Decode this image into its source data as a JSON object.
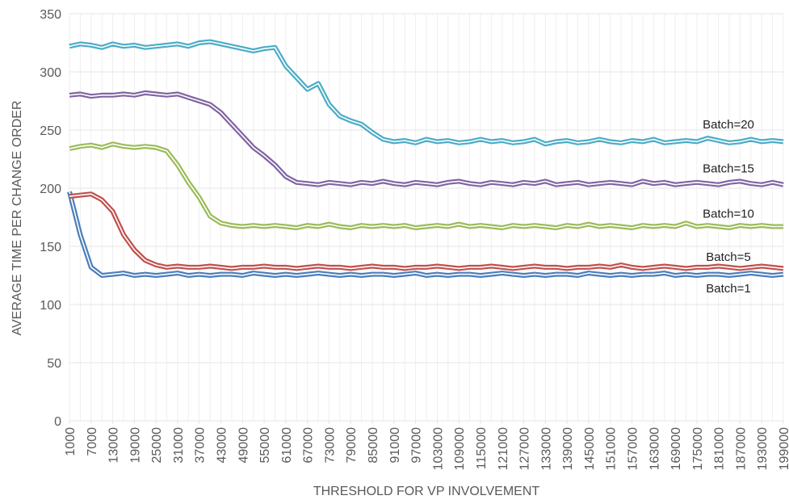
{
  "chart_data": {
    "type": "line",
    "x_label": "THRESHOLD FOR VP INVOLVEMENT",
    "y_label": "AVERAGE TIME PER CHANGE ORDER",
    "x": [
      1000,
      4000,
      7000,
      10000,
      13000,
      16000,
      19000,
      22000,
      25000,
      28000,
      31000,
      34000,
      37000,
      40000,
      43000,
      46000,
      49000,
      52000,
      55000,
      58000,
      61000,
      64000,
      67000,
      70000,
      73000,
      76000,
      79000,
      82000,
      85000,
      88000,
      91000,
      94000,
      97000,
      100000,
      103000,
      106000,
      109000,
      112000,
      115000,
      118000,
      121000,
      124000,
      127000,
      130000,
      133000,
      136000,
      139000,
      142000,
      145000,
      148000,
      151000,
      154000,
      157000,
      160000,
      163000,
      166000,
      169000,
      172000,
      175000,
      178000,
      181000,
      184000,
      187000,
      190000,
      193000,
      196000,
      199000
    ],
    "xlim": [
      1000,
      199000
    ],
    "xticks": [
      1000,
      7000,
      13000,
      19000,
      25000,
      31000,
      37000,
      43000,
      49000,
      55000,
      61000,
      67000,
      73000,
      79000,
      85000,
      91000,
      97000,
      103000,
      109000,
      115000,
      121000,
      127000,
      133000,
      139000,
      145000,
      151000,
      157000,
      163000,
      169000,
      175000,
      181000,
      187000,
      193000,
      199000
    ],
    "ylim": [
      0,
      350
    ],
    "yticks": [
      0,
      50,
      100,
      150,
      200,
      250,
      300,
      350
    ],
    "grid": true,
    "series": [
      {
        "name": "Batch=1",
        "color": "#4a7ebb",
        "values": [
          197,
          160,
          132,
          125,
          126,
          127,
          125,
          126,
          125,
          126,
          127,
          125,
          126,
          125,
          126,
          126,
          125,
          127,
          126,
          125,
          126,
          125,
          126,
          127,
          126,
          125,
          126,
          125,
          126,
          126,
          125,
          126,
          127,
          125,
          126,
          125,
          126,
          126,
          125,
          126,
          127,
          126,
          125,
          126,
          125,
          126,
          126,
          125,
          127,
          126,
          125,
          126,
          125,
          126,
          126,
          127,
          125,
          126,
          125,
          126,
          126,
          125,
          126,
          127,
          126,
          125,
          126
        ]
      },
      {
        "name": "Batch=5",
        "color": "#c0504d",
        "values": [
          193,
          194,
          195,
          190,
          180,
          160,
          147,
          138,
          134,
          132,
          133,
          132,
          132,
          133,
          132,
          131,
          132,
          132,
          133,
          132,
          132,
          131,
          132,
          133,
          132,
          132,
          131,
          132,
          133,
          132,
          132,
          131,
          132,
          132,
          133,
          132,
          131,
          132,
          132,
          133,
          132,
          131,
          132,
          133,
          132,
          132,
          131,
          132,
          132,
          133,
          132,
          134,
          132,
          131,
          132,
          133,
          132,
          131,
          132,
          132,
          133,
          132,
          131,
          132,
          133,
          132,
          131
        ]
      },
      {
        "name": "Batch=10",
        "color": "#9bbb59",
        "values": [
          234,
          236,
          237,
          235,
          238,
          236,
          235,
          236,
          235,
          232,
          220,
          205,
          192,
          176,
          170,
          168,
          167,
          168,
          167,
          168,
          167,
          166,
          168,
          167,
          169,
          167,
          166,
          168,
          167,
          168,
          167,
          168,
          166,
          167,
          168,
          167,
          169,
          167,
          168,
          167,
          166,
          168,
          167,
          168,
          167,
          166,
          168,
          167,
          169,
          167,
          168,
          167,
          166,
          168,
          167,
          168,
          167,
          170,
          167,
          168,
          167,
          166,
          168,
          167,
          168,
          167,
          167
        ]
      },
      {
        "name": "Batch=15",
        "color": "#8064a2",
        "values": [
          280,
          281,
          279,
          280,
          280,
          281,
          280,
          282,
          281,
          280,
          281,
          278,
          275,
          272,
          265,
          255,
          245,
          235,
          228,
          220,
          210,
          205,
          204,
          203,
          205,
          204,
          203,
          205,
          204,
          206,
          204,
          203,
          205,
          204,
          203,
          205,
          206,
          204,
          203,
          205,
          204,
          203,
          205,
          204,
          206,
          203,
          204,
          205,
          203,
          204,
          205,
          204,
          203,
          206,
          204,
          205,
          203,
          204,
          205,
          204,
          203,
          205,
          206,
          204,
          203,
          205,
          203
        ]
      },
      {
        "name": "Batch=20",
        "color": "#4bacc6",
        "values": [
          322,
          324,
          323,
          321,
          324,
          322,
          323,
          321,
          322,
          323,
          324,
          322,
          325,
          326,
          324,
          322,
          320,
          318,
          320,
          321,
          305,
          295,
          285,
          290,
          272,
          262,
          258,
          255,
          248,
          242,
          240,
          241,
          239,
          242,
          240,
          241,
          239,
          240,
          242,
          240,
          241,
          239,
          240,
          242,
          238,
          240,
          241,
          239,
          240,
          242,
          240,
          239,
          241,
          240,
          242,
          239,
          240,
          241,
          240,
          243,
          241,
          239,
          240,
          242,
          240,
          241,
          240
        ]
      }
    ]
  }
}
